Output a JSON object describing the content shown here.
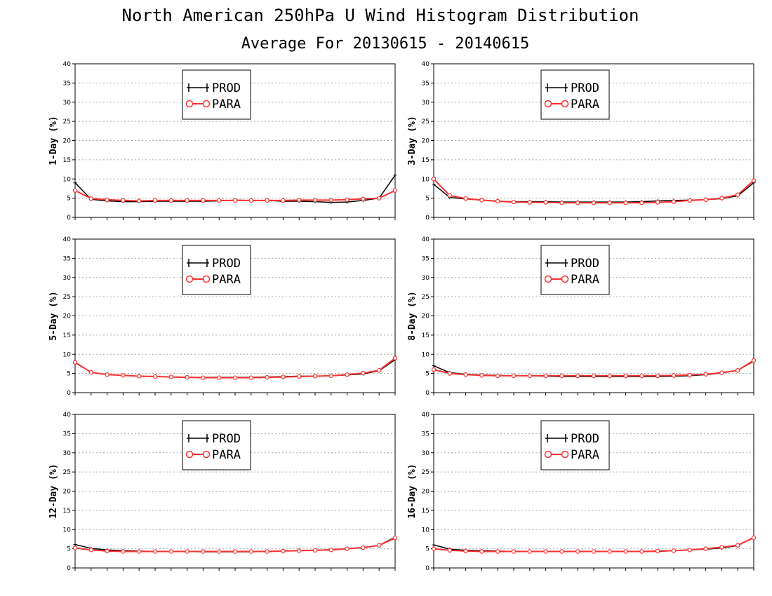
{
  "title": "North American 250hPa U Wind Histogram Distribution",
  "subtitle": "Average For 20130615 - 20140615",
  "colors": {
    "prod": "#000000",
    "para": "#ff3030",
    "grid": "#aaaaaa"
  },
  "legend": {
    "placement": "upper-center",
    "entries": [
      "PROD",
      "PARA"
    ]
  },
  "chart_data": [
    {
      "type": "line",
      "ylabel": "1-Day (%)",
      "ylim": [
        0,
        40
      ],
      "yticks": [
        0,
        5,
        10,
        15,
        20,
        25,
        30,
        35,
        40
      ],
      "grid": true,
      "x": [
        1,
        2,
        3,
        4,
        5,
        6,
        7,
        8,
        9,
        10,
        11,
        12,
        13,
        14,
        15,
        16,
        17,
        18,
        19,
        20,
        21
      ],
      "series": [
        {
          "name": "PROD",
          "values": [
            9.0,
            4.7,
            4.3,
            4.1,
            4.1,
            4.2,
            4.2,
            4.2,
            4.2,
            4.3,
            4.5,
            4.4,
            4.4,
            4.2,
            4.2,
            4.1,
            3.9,
            4.0,
            4.4,
            5.0,
            11.0
          ]
        },
        {
          "name": "PARA",
          "values": [
            7.0,
            4.9,
            4.6,
            4.4,
            4.3,
            4.4,
            4.4,
            4.4,
            4.4,
            4.4,
            4.4,
            4.4,
            4.4,
            4.4,
            4.5,
            4.5,
            4.5,
            4.6,
            4.8,
            5.0,
            7.0
          ]
        }
      ]
    },
    {
      "type": "line",
      "ylabel": "3-Day (%)",
      "ylim": [
        0,
        40
      ],
      "yticks": [
        0,
        5,
        10,
        15,
        20,
        25,
        30,
        35,
        40
      ],
      "grid": true,
      "x": [
        1,
        2,
        3,
        4,
        5,
        6,
        7,
        8,
        9,
        10,
        11,
        12,
        13,
        14,
        15,
        16,
        17,
        18,
        19,
        20,
        21
      ],
      "series": [
        {
          "name": "PROD",
          "values": [
            8.6,
            5.2,
            4.8,
            4.5,
            4.2,
            4.1,
            4.1,
            4.1,
            4.0,
            4.0,
            4.0,
            4.0,
            4.0,
            4.1,
            4.3,
            4.4,
            4.5,
            4.6,
            4.9,
            5.6,
            9.0
          ]
        },
        {
          "name": "PARA",
          "values": [
            10.0,
            5.7,
            4.9,
            4.5,
            4.2,
            4.0,
            3.9,
            3.9,
            3.8,
            3.8,
            3.8,
            3.8,
            3.8,
            3.8,
            3.9,
            4.1,
            4.4,
            4.6,
            5.0,
            5.9,
            9.6
          ]
        }
      ]
    },
    {
      "type": "line",
      "ylabel": "5-Day (%)",
      "ylim": [
        0,
        40
      ],
      "yticks": [
        0,
        5,
        10,
        15,
        20,
        25,
        30,
        35,
        40
      ],
      "grid": true,
      "x": [
        1,
        2,
        3,
        4,
        5,
        6,
        7,
        8,
        9,
        10,
        11,
        12,
        13,
        14,
        15,
        16,
        17,
        18,
        19,
        20,
        21
      ],
      "series": [
        {
          "name": "PROD",
          "values": [
            7.8,
            5.3,
            4.7,
            4.5,
            4.3,
            4.2,
            4.1,
            4.0,
            4.0,
            4.0,
            4.0,
            4.0,
            4.1,
            4.2,
            4.3,
            4.3,
            4.4,
            4.6,
            4.9,
            5.7,
            8.6
          ]
        },
        {
          "name": "PARA",
          "values": [
            7.9,
            5.3,
            4.7,
            4.5,
            4.3,
            4.2,
            4.1,
            4.0,
            3.9,
            3.9,
            3.9,
            3.9,
            4.0,
            4.1,
            4.2,
            4.3,
            4.4,
            4.7,
            5.1,
            5.8,
            9.0
          ]
        }
      ]
    },
    {
      "type": "line",
      "ylabel": "8-Day (%)",
      "ylim": [
        0,
        40
      ],
      "yticks": [
        0,
        5,
        10,
        15,
        20,
        25,
        30,
        35,
        40
      ],
      "grid": true,
      "x": [
        1,
        2,
        3,
        4,
        5,
        6,
        7,
        8,
        9,
        10,
        11,
        12,
        13,
        14,
        15,
        16,
        17,
        18,
        19,
        20,
        21
      ],
      "series": [
        {
          "name": "PROD",
          "values": [
            7.0,
            5.2,
            4.8,
            4.6,
            4.5,
            4.4,
            4.4,
            4.3,
            4.2,
            4.2,
            4.2,
            4.2,
            4.2,
            4.2,
            4.2,
            4.3,
            4.4,
            4.7,
            5.1,
            5.8,
            8.2
          ]
        },
        {
          "name": "PARA",
          "values": [
            6.0,
            5.0,
            4.7,
            4.5,
            4.4,
            4.4,
            4.4,
            4.4,
            4.4,
            4.4,
            4.4,
            4.4,
            4.4,
            4.4,
            4.4,
            4.5,
            4.6,
            4.8,
            5.2,
            5.8,
            8.4
          ]
        }
      ]
    },
    {
      "type": "line",
      "ylabel": "12-Day (%)",
      "ylim": [
        0,
        40
      ],
      "yticks": [
        0,
        5,
        10,
        15,
        20,
        25,
        30,
        35,
        40
      ],
      "grid": true,
      "x": [
        1,
        2,
        3,
        4,
        5,
        6,
        7,
        8,
        9,
        10,
        11,
        12,
        13,
        14,
        15,
        16,
        17,
        18,
        19,
        20,
        21
      ],
      "series": [
        {
          "name": "PROD",
          "values": [
            6.1,
            5.1,
            4.7,
            4.5,
            4.4,
            4.3,
            4.3,
            4.3,
            4.2,
            4.2,
            4.2,
            4.2,
            4.3,
            4.4,
            4.5,
            4.6,
            4.8,
            5.0,
            5.3,
            5.9,
            8.0
          ]
        },
        {
          "name": "PARA",
          "values": [
            5.2,
            4.7,
            4.4,
            4.3,
            4.3,
            4.3,
            4.3,
            4.3,
            4.3,
            4.3,
            4.3,
            4.3,
            4.3,
            4.4,
            4.5,
            4.6,
            4.7,
            5.0,
            5.3,
            5.9,
            7.8
          ]
        }
      ]
    },
    {
      "type": "line",
      "ylabel": "16-Day (%)",
      "ylim": [
        0,
        40
      ],
      "yticks": [
        0,
        5,
        10,
        15,
        20,
        25,
        30,
        35,
        40
      ],
      "grid": true,
      "x": [
        1,
        2,
        3,
        4,
        5,
        6,
        7,
        8,
        9,
        10,
        11,
        12,
        13,
        14,
        15,
        16,
        17,
        18,
        19,
        20,
        21
      ],
      "series": [
        {
          "name": "PROD",
          "values": [
            6.0,
            4.9,
            4.6,
            4.5,
            4.4,
            4.3,
            4.3,
            4.3,
            4.3,
            4.3,
            4.3,
            4.3,
            4.3,
            4.3,
            4.3,
            4.5,
            4.7,
            4.9,
            5.2,
            5.8,
            8.0
          ]
        },
        {
          "name": "PARA",
          "values": [
            5.0,
            4.6,
            4.4,
            4.3,
            4.3,
            4.3,
            4.3,
            4.3,
            4.3,
            4.3,
            4.3,
            4.3,
            4.3,
            4.3,
            4.4,
            4.5,
            4.7,
            5.0,
            5.4,
            5.9,
            7.9
          ]
        }
      ]
    }
  ]
}
